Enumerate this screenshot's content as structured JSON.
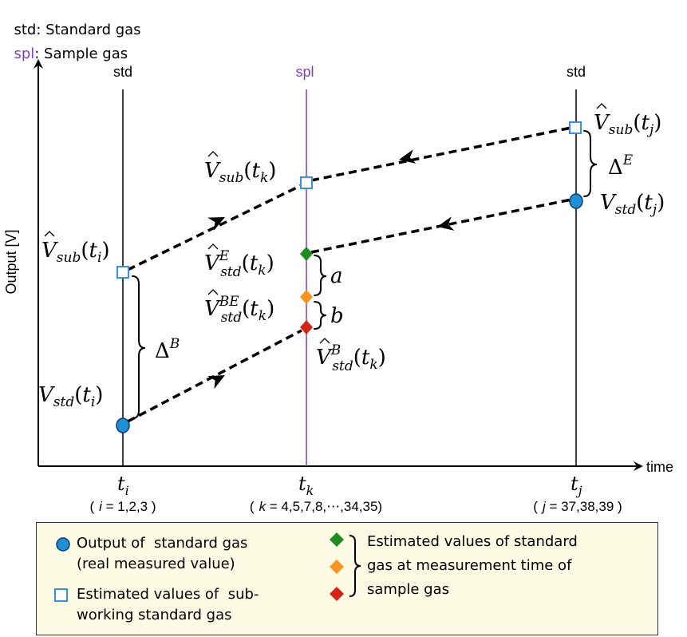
{
  "header": {
    "std_abbr": "std",
    "std_desc": ": Standard gas",
    "spl_abbr": "spl",
    "spl_desc": ": Sample gas"
  },
  "colors": {
    "spl": "#7f3fbf",
    "std_marker": "#1e90d8",
    "sub_marker": "#3a8fe0",
    "green": "#1e8c1e",
    "orange": "#f7941d",
    "red": "#d62414",
    "legend_bg": "#fdfbe4"
  },
  "axes": {
    "y_label": "Output [V]",
    "x_label": "time"
  },
  "columns": {
    "left": {
      "label": "std",
      "tick_symbol": "t",
      "tick_sub": "i",
      "range_var": "i",
      "range_values": " = 1,2,3 "
    },
    "middle": {
      "label": "spl",
      "tick_symbol": "t",
      "tick_sub": "k",
      "range_var": "k",
      "range_values": " = 4,5,7,8,⋯,34,35"
    },
    "right": {
      "label": "std",
      "tick_symbol": "t",
      "tick_sub": "j",
      "range_var": "j",
      "range_values": " = 37,38,39 "
    }
  },
  "labels": {
    "v_sub_ti": {
      "base": "V",
      "sub": "sub",
      "arg": "t",
      "arg_sub": "i"
    },
    "v_std_ti": {
      "base": "V",
      "sub": "std",
      "arg": "t",
      "arg_sub": "i"
    },
    "v_sub_tk": {
      "base": "V",
      "sub": "sub",
      "arg": "t",
      "arg_sub": "k"
    },
    "v_std_e_tk": {
      "base": "V",
      "sup": "E",
      "sub": "std",
      "arg": "t",
      "arg_sub": "k"
    },
    "v_std_be_tk": {
      "base": "V",
      "sup": "BE",
      "sub": "std",
      "arg": "t",
      "arg_sub": "k"
    },
    "v_std_b_tk": {
      "base": "V",
      "sup": "B",
      "sub": "std",
      "arg": "t",
      "arg_sub": "k"
    },
    "v_sub_tj": {
      "base": "V",
      "sub": "sub",
      "arg": "t",
      "arg_sub": "j"
    },
    "v_std_tj": {
      "base": "V",
      "sub": "std",
      "arg": "t",
      "arg_sub": "j"
    },
    "delta_b": {
      "base": "Δ",
      "sup": "B"
    },
    "delta_e": {
      "base": "Δ",
      "sup": "E"
    },
    "a": "a",
    "b": "b"
  },
  "legend": {
    "std_marker_text_1": "Output of  standard gas",
    "std_marker_text_2": "(real measured value)",
    "sub_marker_text_1": "Estimated values of  sub-",
    "sub_marker_text_2": "working standard gas",
    "estimated_text_1": "Estimated values of standard",
    "estimated_text_2": "gas at measurement time of",
    "estimated_text_3": "sample gas"
  }
}
